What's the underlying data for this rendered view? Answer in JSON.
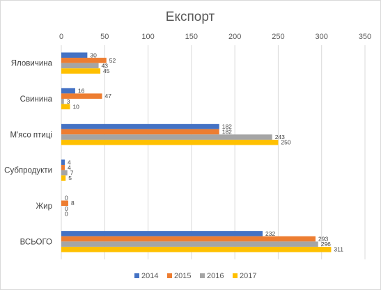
{
  "chart_data": {
    "type": "bar",
    "orientation": "horizontal",
    "title": "Експорт",
    "categories": [
      "Яловичина",
      "Свинина",
      "М'ясо птиці",
      "Субпродукти",
      "Жир",
      "ВСЬОГО"
    ],
    "series": [
      {
        "name": "2014",
        "color": "#4472C4",
        "values": [
          30,
          16,
          182,
          4,
          0,
          232
        ]
      },
      {
        "name": "2015",
        "color": "#ED7D31",
        "values": [
          52,
          47,
          182,
          4,
          8,
          293
        ]
      },
      {
        "name": "2016",
        "color": "#A5A5A5",
        "values": [
          43,
          3,
          243,
          7,
          0,
          296
        ]
      },
      {
        "name": "2017",
        "color": "#FFC000",
        "values": [
          45,
          10,
          250,
          5,
          0,
          311
        ]
      }
    ],
    "xlim": [
      0,
      350
    ],
    "xticks": [
      0,
      50,
      100,
      150,
      200,
      250,
      300,
      350
    ],
    "x_axis_position": "top",
    "gridlines": true,
    "legend_position": "bottom"
  }
}
